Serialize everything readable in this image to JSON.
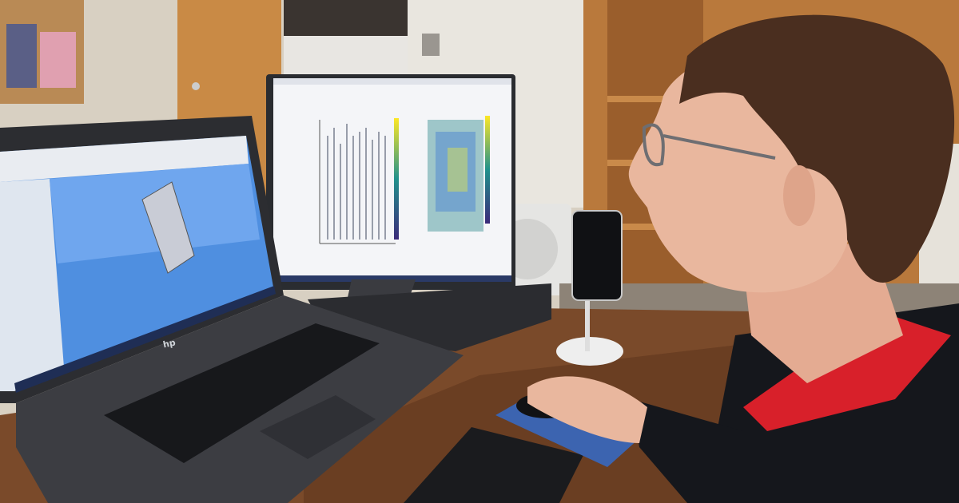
{
  "scene": {
    "laptop_logo": "hp",
    "colors": {
      "wall": "#d9d2c4",
      "door": "#c98a45",
      "shelf": "#b9793c",
      "desk": "#7a4a2a",
      "laptop_screen": "#4f8fe0",
      "monitor_screen": "#f4f5f8",
      "hair": "#4a2e1f",
      "skin": "#e9b79e",
      "shirt": "#d8202a",
      "cardigan": "#15171c"
    }
  }
}
